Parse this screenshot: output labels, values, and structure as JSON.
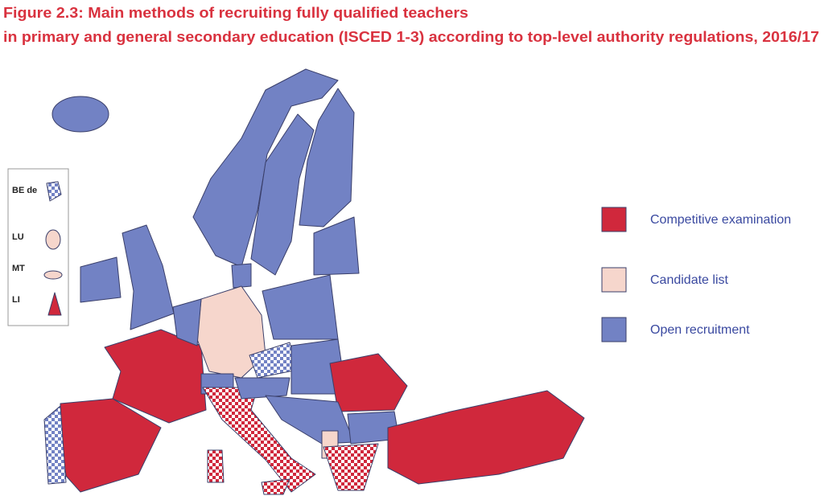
{
  "title": [
    "Figure 2.3: Main methods of recruiting fully qualified teachers",
    "in primary and general secondary education (ISCED 1-3) according to top-level authority regulations, 2016/17"
  ],
  "inset": [
    "BE de",
    "LU",
    "MT",
    "LI"
  ],
  "legend": [
    {
      "label": "Competitive examination",
      "color": "#d0283c"
    },
    {
      "label": "Candidate list",
      "color": "#f6d6cc"
    },
    {
      "label": "Open recruitment",
      "color": "#7282c4"
    }
  ]
}
